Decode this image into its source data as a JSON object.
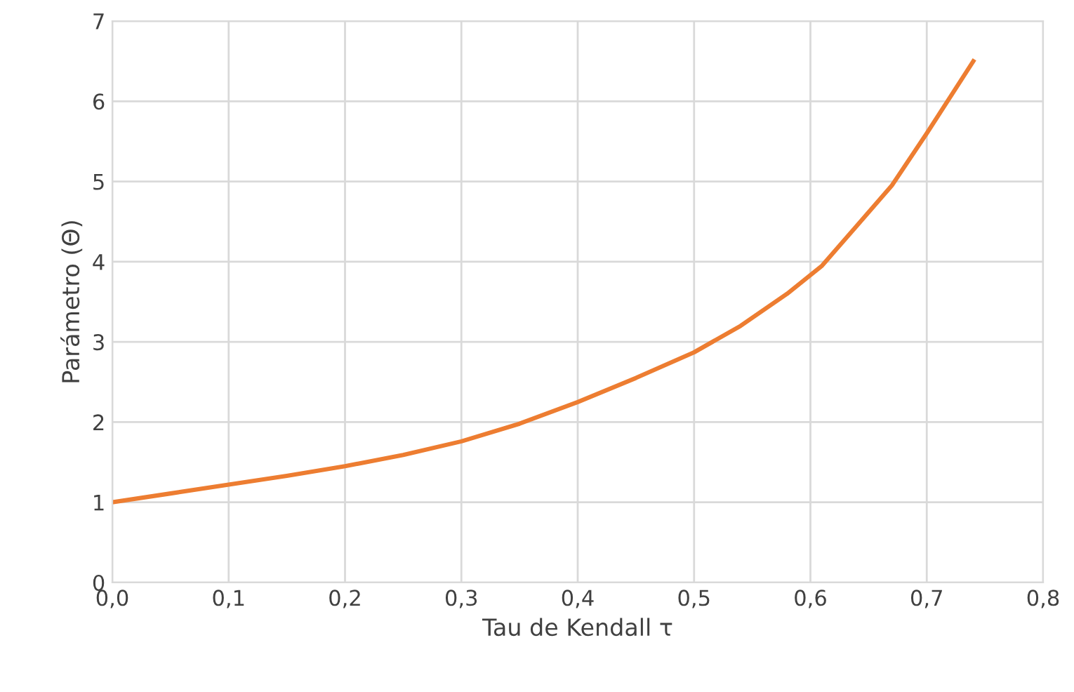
{
  "chart_data": {
    "type": "line",
    "xlabel": "Tau de Kendall τ",
    "ylabel": "Parámetro (Θ)",
    "series": [
      {
        "color": "#ed7d31",
        "x": [
          0,
          0.05,
          0.1,
          0.15,
          0.2,
          0.25,
          0.3,
          0.35,
          0.4,
          0.45,
          0.5,
          0.54,
          0.58,
          0.61,
          0.64,
          0.67,
          0.7,
          0.72,
          0.74
        ],
        "values": [
          1,
          1.11,
          1.22,
          1.33,
          1.45,
          1.59,
          1.76,
          1.98,
          2.25,
          2.55,
          2.87,
          3.2,
          3.6,
          3.95,
          4.45,
          4.95,
          5.6,
          6.05,
          6.5
        ]
      }
    ],
    "xlim": [
      0,
      0.8
    ],
    "xticks": [
      {
        "value": 0,
        "label": "0,0"
      },
      {
        "value": 0.1,
        "label": "0,1"
      },
      {
        "value": 0.2,
        "label": "0,2"
      },
      {
        "value": 0.3,
        "label": "0,3"
      },
      {
        "value": 0.4,
        "label": "0,4"
      },
      {
        "value": 0.5,
        "label": "0,5"
      },
      {
        "value": 0.6,
        "label": "0,6"
      },
      {
        "value": 0.7,
        "label": "0,7"
      },
      {
        "value": 0.8,
        "label": "0,8"
      }
    ],
    "ylim": [
      0,
      7
    ],
    "yticks": [
      0,
      1,
      2,
      3,
      4,
      5,
      6,
      7
    ],
    "grid": true,
    "marker": "none",
    "line_style": "solid"
  }
}
